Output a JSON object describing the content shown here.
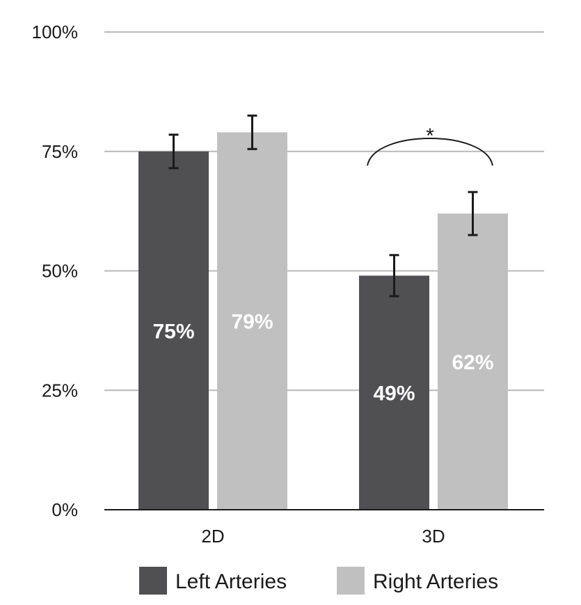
{
  "chart_data": {
    "type": "bar",
    "categories": [
      "2D",
      "3D"
    ],
    "series": [
      {
        "name": "Left Arteries",
        "color": "#505052",
        "values": [
          75,
          49
        ],
        "error": [
          3.5,
          4.3
        ],
        "labels": [
          "75%",
          "49%"
        ]
      },
      {
        "name": "Right Arteries",
        "color": "#c0c0c0",
        "values": [
          79,
          62
        ],
        "error": [
          3.5,
          4.5
        ],
        "labels": [
          "79%",
          "62%"
        ]
      }
    ],
    "ylim": [
      0,
      100
    ],
    "yticks": [
      0,
      25,
      50,
      75,
      100
    ],
    "ytick_labels": [
      "0%",
      "25%",
      "50%",
      "75%",
      "100%"
    ],
    "grid": true,
    "legend": "bottom",
    "annotations": [
      {
        "text": "*",
        "category": "3D",
        "type": "significance-bracket"
      }
    ],
    "colors": {
      "grid": "#b8b8b8",
      "axis": "#1a1a1a",
      "error_bar": "#1a1a1a"
    }
  }
}
